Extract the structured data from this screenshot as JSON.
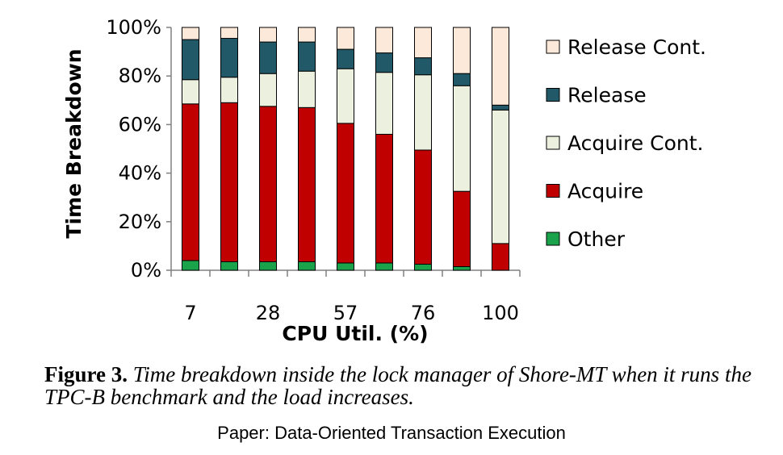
{
  "chart_data": {
    "type": "bar",
    "stacked": true,
    "ylabel": "Time Breakdown",
    "xlabel": "CPU Util. (%)",
    "ylim": [
      0,
      100
    ],
    "yticks": [
      "0%",
      "20%",
      "40%",
      "60%",
      "80%",
      "100%"
    ],
    "categories": [
      "7",
      "",
      "28",
      "",
      "57",
      "",
      "76",
      "",
      "100"
    ],
    "legend_position": "right",
    "series": [
      {
        "name": "Other",
        "color": "#1aa34a",
        "values": [
          4,
          3.5,
          3.5,
          3.5,
          3,
          3,
          2.5,
          1.5,
          0
        ]
      },
      {
        "name": "Acquire",
        "color": "#c00000",
        "values": [
          64.5,
          65.5,
          64,
          63.5,
          57.5,
          53,
          47,
          31,
          11
        ]
      },
      {
        "name": "Acquire Cont.",
        "color": "#ebf1de",
        "values": [
          10,
          10.5,
          13.5,
          15,
          22.5,
          25.5,
          31,
          43.5,
          55
        ]
      },
      {
        "name": "Release",
        "color": "#215968",
        "values": [
          16.5,
          16,
          13,
          12,
          8,
          8,
          7,
          5,
          2
        ]
      },
      {
        "name": "Release Cont.",
        "color": "#fde9d9",
        "values": [
          5,
          4.5,
          6,
          6,
          9,
          10.5,
          12.5,
          19,
          32
        ]
      }
    ]
  },
  "caption": {
    "label": "Figure 3.",
    "text": " Time breakdown inside the lock manager of Shore-MT when it runs the TPC-B benchmark and the load increases."
  },
  "source": "Paper: Data-Oriented Transaction Execution"
}
